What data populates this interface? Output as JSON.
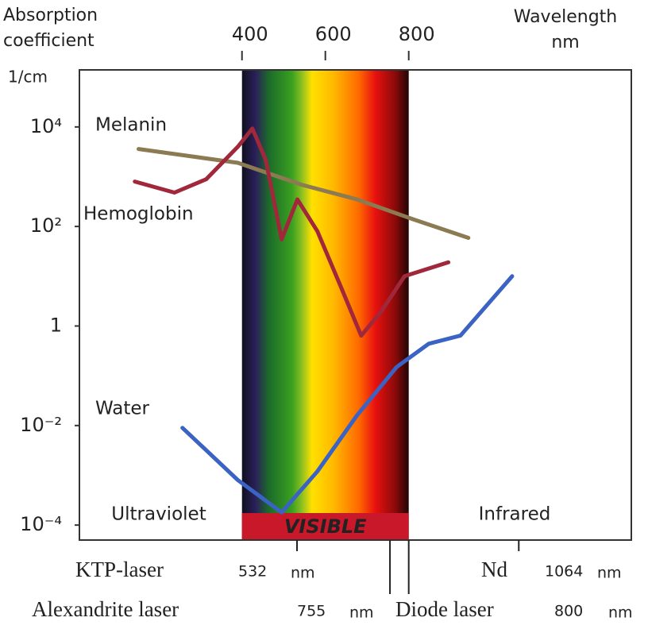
{
  "chart_data": {
    "type": "line",
    "y_label": [
      "Absorption",
      "coefficient"
    ],
    "y_unit": "1/cm",
    "x_label": "Wavelength",
    "x_unit": "nm",
    "yscale": "log",
    "xlim": [
      10,
      1334
    ],
    "ylim": [
      5e-05,
      140000
    ],
    "xticks": [
      400,
      600,
      800
    ],
    "yticks": [
      {
        "value": 0.0001,
        "label": "10⁻⁴"
      },
      {
        "value": 0.01,
        "label": "10⁻²"
      },
      1,
      {
        "value": 100,
        "label": "10²"
      },
      {
        "value": 10000,
        "label": "10⁴"
      }
    ],
    "series": [
      {
        "name": "Melanin",
        "color": "#8b7a52",
        "x": [
          152,
          390,
          543,
          676,
          810,
          943
        ],
        "values": [
          3600,
          1900,
          690,
          350,
          140,
          59
        ]
      },
      {
        "name": "Hemoglobin",
        "color": "#a0283a",
        "x": [
          143,
          238,
          314,
          390,
          425,
          457,
          495,
          533,
          581,
          638,
          686,
          733,
          790,
          895
        ],
        "values": [
          800,
          480,
          890,
          4000,
          9300,
          2200,
          55,
          350,
          80,
          5.9,
          0.64,
          1.9,
          10,
          19
        ]
      },
      {
        "name": "Water",
        "color": "#3b63c4",
        "x": [
          257,
          390,
          495,
          581,
          676,
          771,
          848,
          924,
          1048
        ],
        "values": [
          0.009,
          0.0008,
          0.00018,
          0.0012,
          0.016,
          0.15,
          0.44,
          0.64,
          10
        ]
      }
    ],
    "regions": [
      "Ultraviolet",
      "VISIBLE",
      "Infrared"
    ],
    "annotations": [
      {
        "label": "KTP-laser",
        "value": 532,
        "unit": "nm"
      },
      {
        "label": "Nd",
        "value": 1064,
        "unit": "nm"
      },
      {
        "label": "Alexandrite laser",
        "value": 755,
        "unit": "nm"
      },
      {
        "label": "Diode laser",
        "value": 800,
        "unit": "nm"
      }
    ]
  }
}
